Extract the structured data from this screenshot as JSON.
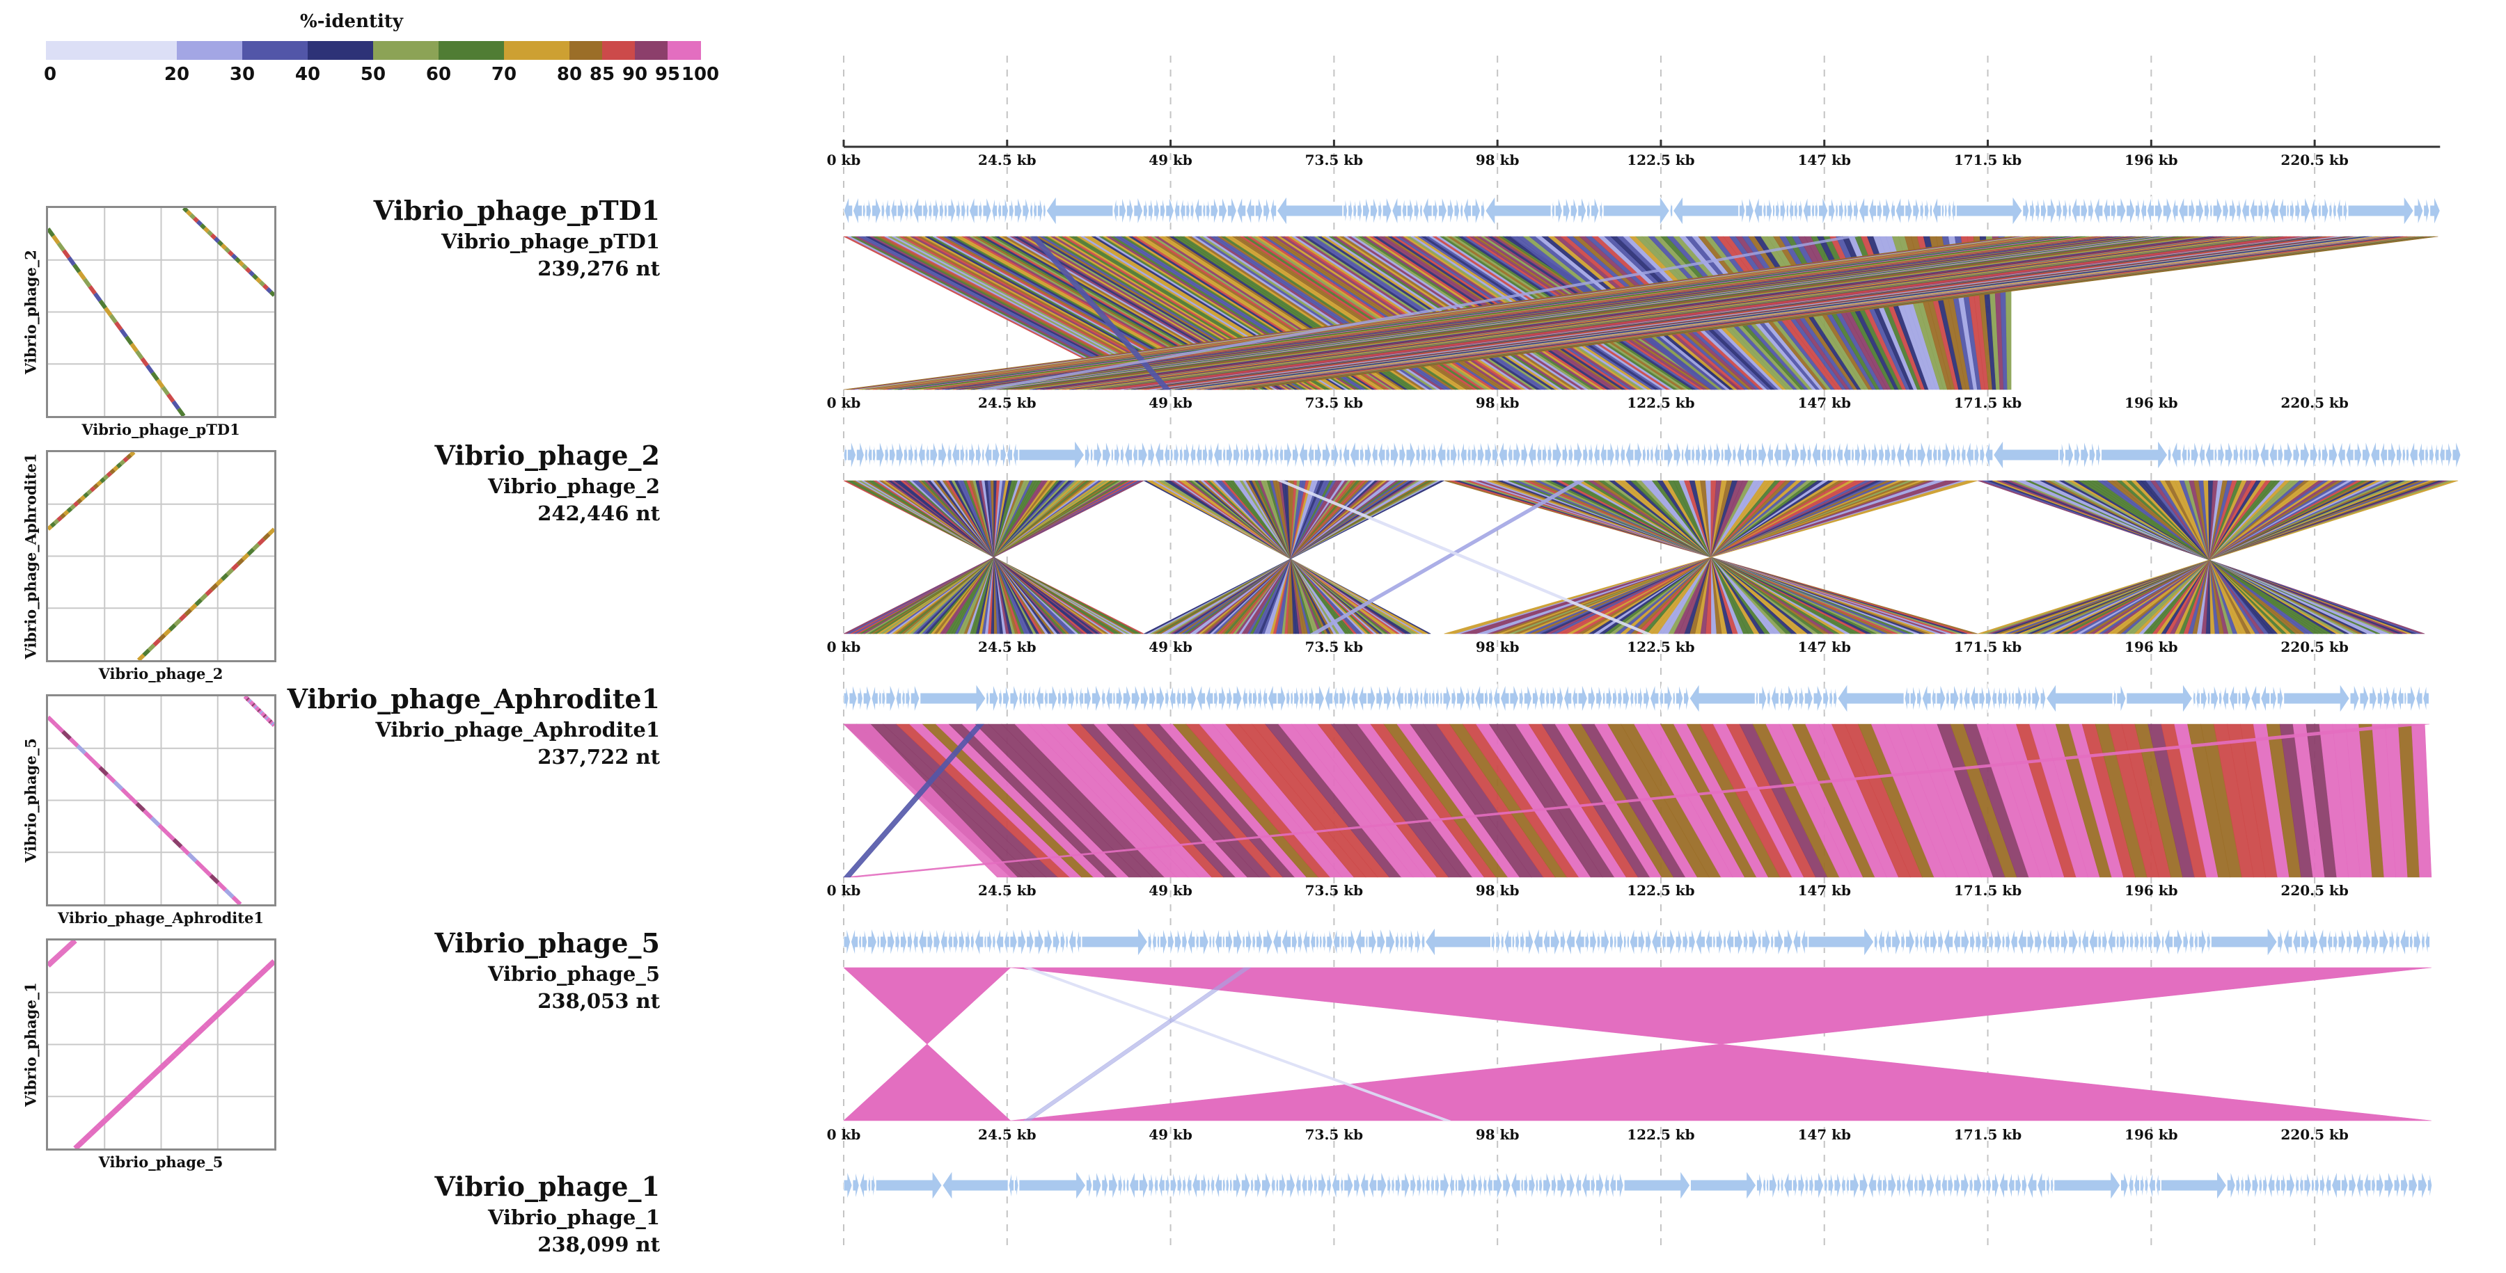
{
  "legend": {
    "title": "%-identity",
    "stops": [
      0,
      20,
      30,
      40,
      50,
      60,
      70,
      80,
      85,
      90,
      95,
      100
    ],
    "tick_labels": [
      "0",
      "20",
      "30",
      "40",
      "50",
      "60",
      "70",
      "80",
      "85",
      "90",
      "95",
      "100"
    ],
    "colors": [
      "#dcdff6",
      "#a3a6e4",
      "#5256a8",
      "#2d3277",
      "#8ca356",
      "#507d34",
      "#cda032",
      "#9b6e28",
      "#cc4a4a",
      "#8c3f6b",
      "#e36ec0"
    ]
  },
  "axis": {
    "unit": "kb",
    "ticks": [
      0,
      24.5,
      49,
      73.5,
      98,
      122.5,
      147,
      171.5,
      196,
      220.5
    ],
    "tick_labels": [
      "0 kb",
      "24.5 kb",
      "49 kb",
      "73.5 kb",
      "98 kb",
      "122.5 kb",
      "147 kb",
      "171.5 kb",
      "196 kb",
      "220.5 kb"
    ],
    "max_kb": 240
  },
  "genomes": [
    {
      "title": "Vibrio_phage_pTD1",
      "subtitle": "Vibrio_phage_pTD1",
      "length_label": "239,276 nt",
      "length_kb": 239.3
    },
    {
      "title": "Vibrio_phage_2",
      "subtitle": "Vibrio_phage_2",
      "length_label": "242,446 nt",
      "length_kb": 242.4
    },
    {
      "title": "Vibrio_phage_Aphrodite1",
      "subtitle": "Vibrio_phage_Aphrodite1",
      "length_label": "237,722 nt",
      "length_kb": 237.7
    },
    {
      "title": "Vibrio_phage_5",
      "subtitle": "Vibrio_phage_5",
      "length_label": "238,053 nt",
      "length_kb": 238.1
    },
    {
      "title": "Vibrio_phage_1",
      "subtitle": "Vibrio_phage_1",
      "length_label": "238,099 nt",
      "length_kb": 238.1
    }
  ],
  "dotplots": [
    {
      "x_label": "Vibrio_phage_pTD1",
      "y_label": "Vibrio_phage_2"
    },
    {
      "x_label": "Vibrio_phage_2",
      "y_label": "Vibrio_phage_Aphrodite1"
    },
    {
      "x_label": "Vibrio_phage_Aphrodite1",
      "y_label": "Vibrio_phage_5"
    },
    {
      "x_label": "Vibrio_phage_5",
      "y_label": "Vibrio_phage_1"
    }
  ],
  "comparisons": [
    {
      "pair": "pTD1 vs phage_2",
      "pattern": "crossed",
      "dominant_identity": "mixed 50-95",
      "blocks": [
        [
          0,
          50,
          45,
          85
        ],
        [
          50,
          100,
          85,
          135
        ],
        [
          100,
          175,
          130,
          175
        ],
        [
          175,
          239,
          0,
          60
        ]
      ]
    },
    {
      "pair": "phage_2 vs Aphrodite1",
      "pattern": "inverted",
      "dominant_identity": "mixed 50-95",
      "blocks": [
        [
          0,
          45,
          45,
          0
        ],
        [
          45,
          90,
          88,
          45
        ],
        [
          90,
          170,
          170,
          90
        ],
        [
          170,
          242,
          237,
          170
        ]
      ]
    },
    {
      "pair": "Aphrodite1 vs phage_5",
      "pattern": "shifted",
      "dominant_identity": "95-100",
      "blocks": [
        [
          0,
          237,
          25,
          238
        ]
      ]
    },
    {
      "pair": "phage_5 vs phage_1",
      "pattern": "inverted",
      "dominant_identity": "95-100",
      "blocks": [
        [
          0,
          25,
          25,
          0
        ],
        [
          25,
          238,
          238,
          25
        ]
      ]
    }
  ],
  "colors": {
    "gene_arrow": "#a9c8ee",
    "axis": "#333333",
    "grid": "#bbbbbb",
    "dotplot_border": "#8a8a8a"
  }
}
